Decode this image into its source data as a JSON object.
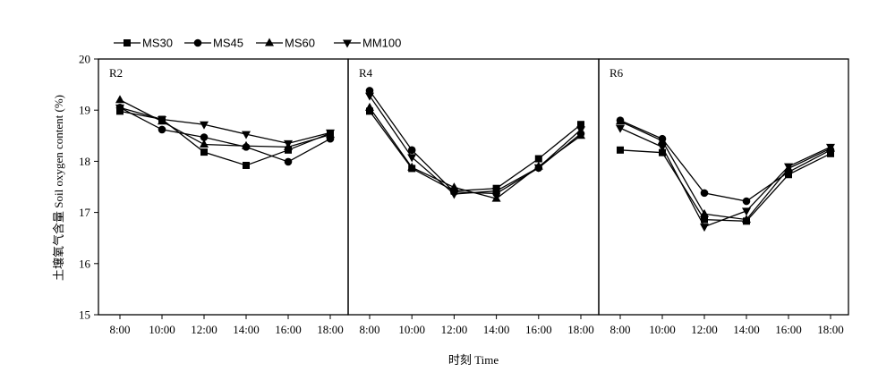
{
  "chart_data": {
    "type": "line",
    "ylabel": "土壤氧气含量 Soil oxygen content (%)",
    "xlabel": "时刻 Time",
    "categories": [
      "8:00",
      "10:00",
      "12:00",
      "14:00",
      "16:00",
      "18:00"
    ],
    "ylim": [
      15,
      20
    ],
    "yticks": [
      15,
      16,
      17,
      18,
      19,
      20
    ],
    "grid": false,
    "legend_position": "top-left",
    "legend": [
      {
        "name": "MS30",
        "marker": "square"
      },
      {
        "name": "MS45",
        "marker": "circle"
      },
      {
        "name": "MS60",
        "marker": "triangle-up"
      },
      {
        "name": "MM100",
        "marker": "triangle-down"
      }
    ],
    "panels": [
      {
        "label": "R2",
        "series": [
          {
            "name": "MS30",
            "values": [
              18.98,
              18.82,
              18.18,
              17.92,
              18.22,
              18.55
            ]
          },
          {
            "name": "MS45",
            "values": [
              19.05,
              18.62,
              18.47,
              18.28,
              17.99,
              18.44
            ]
          },
          {
            "name": "MS60",
            "values": [
              19.2,
              18.78,
              18.33,
              18.3,
              18.28,
              18.52
            ]
          },
          {
            "name": "MM100",
            "values": [
              19.05,
              18.82,
              18.72,
              18.53,
              18.35,
              18.56
            ]
          }
        ]
      },
      {
        "label": "R4",
        "series": [
          {
            "name": "MS30",
            "values": [
              18.98,
              17.86,
              17.42,
              17.47,
              18.05,
              18.72
            ]
          },
          {
            "name": "MS45",
            "values": [
              19.38,
              18.22,
              17.4,
              17.37,
              17.87,
              18.54
            ]
          },
          {
            "name": "MS60",
            "values": [
              19.05,
              17.88,
              17.49,
              17.27,
              17.9,
              18.5
            ]
          },
          {
            "name": "MM100",
            "values": [
              19.28,
              18.08,
              17.36,
              17.42,
              17.88,
              18.62
            ]
          }
        ]
      },
      {
        "label": "R6",
        "series": [
          {
            "name": "MS30",
            "values": [
              18.22,
              18.17,
              16.86,
              16.83,
              17.74,
              18.15
            ]
          },
          {
            "name": "MS45",
            "values": [
              18.8,
              18.44,
              17.38,
              17.22,
              17.79,
              18.22
            ]
          },
          {
            "name": "MS60",
            "values": [
              18.78,
              18.4,
              16.97,
              16.86,
              17.86,
              18.25
            ]
          },
          {
            "name": "MM100",
            "values": [
              18.65,
              18.28,
              16.72,
              17.03,
              17.9,
              18.28
            ]
          }
        ]
      }
    ]
  }
}
